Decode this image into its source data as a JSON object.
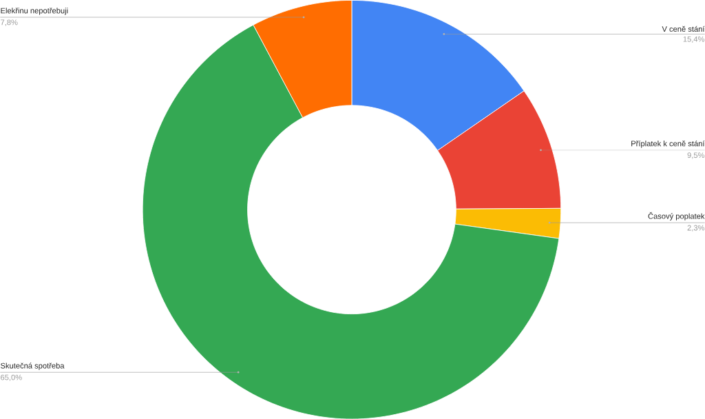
{
  "chart_data": {
    "type": "donut",
    "categories": [
      "V ceně stání",
      "Příplatek  k ceně stání",
      "Časový poplatek",
      "Skutečná spotřeba",
      "Elekřinu nepotřebuji"
    ],
    "values": [
      15.4,
      9.5,
      2.3,
      65.0,
      7.8
    ],
    "colors": [
      "#4285f4",
      "#ea4335",
      "#fbbc04",
      "#34a853",
      "#ff6d01"
    ],
    "value_labels": [
      "15,4%",
      "9,5%",
      "2,3%",
      "65,0%",
      "7,8%"
    ]
  }
}
